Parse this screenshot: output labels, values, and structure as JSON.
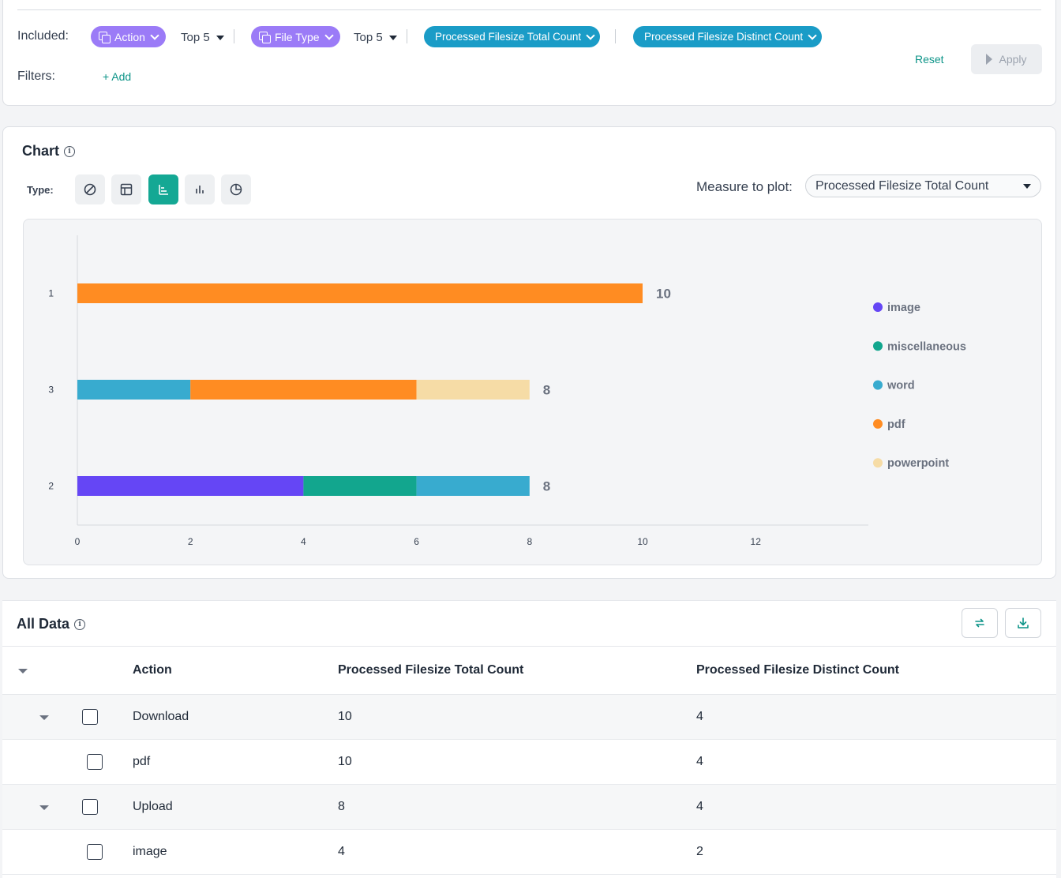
{
  "filters": {
    "included_label": "Included:",
    "filters_label": "Filters:",
    "dimensions": [
      {
        "label": "Action",
        "top": "Top 5"
      },
      {
        "label": "File Type",
        "top": "Top 5"
      }
    ],
    "measures": [
      "Processed Filesize Total Count",
      "Processed Filesize Distinct Count"
    ],
    "add_label": "Add",
    "reset_label": "Reset",
    "apply_label": "Apply"
  },
  "chart": {
    "title": "Chart",
    "type_label": "Type:",
    "type_buttons": [
      "none",
      "table",
      "horizontal-bar",
      "vertical-bar",
      "pie"
    ],
    "active_type": "horizontal-bar",
    "measure_label": "Measure to plot:",
    "measure_value": "Processed Filesize Total Count"
  },
  "chart_data": {
    "type": "bar",
    "orientation": "horizontal",
    "stacked": true,
    "categories": [
      "1",
      "3",
      "2"
    ],
    "series": [
      {
        "name": "image",
        "color": "#6546f5",
        "values": [
          0,
          0,
          4
        ]
      },
      {
        "name": "miscellaneous",
        "color": "#12a68e",
        "values": [
          0,
          0,
          2
        ]
      },
      {
        "name": "word",
        "color": "#38abcf",
        "values": [
          0,
          2,
          2
        ]
      },
      {
        "name": "pdf",
        "color": "#ff8c22",
        "values": [
          10,
          4,
          0
        ]
      },
      {
        "name": "powerpoint",
        "color": "#f6dca6",
        "values": [
          0,
          2,
          0
        ]
      }
    ],
    "totals": [
      "10",
      "8",
      "8"
    ],
    "xticks": [
      "0",
      "2",
      "4",
      "6",
      "8",
      "10",
      "12"
    ],
    "xlim": [
      0,
      14
    ],
    "legend_position": "right"
  },
  "table": {
    "title": "All Data",
    "columns": [
      "Action",
      "Processed Filesize Total Count",
      "Processed Filesize Distinct Count"
    ],
    "rows": [
      {
        "label": "Download",
        "total": "10",
        "distinct": "4"
      },
      {
        "label": "pdf",
        "total": "10",
        "distinct": "4"
      },
      {
        "label": "Upload",
        "total": "8",
        "distinct": "4"
      },
      {
        "label": "image",
        "total": "4",
        "distinct": "2"
      }
    ]
  }
}
